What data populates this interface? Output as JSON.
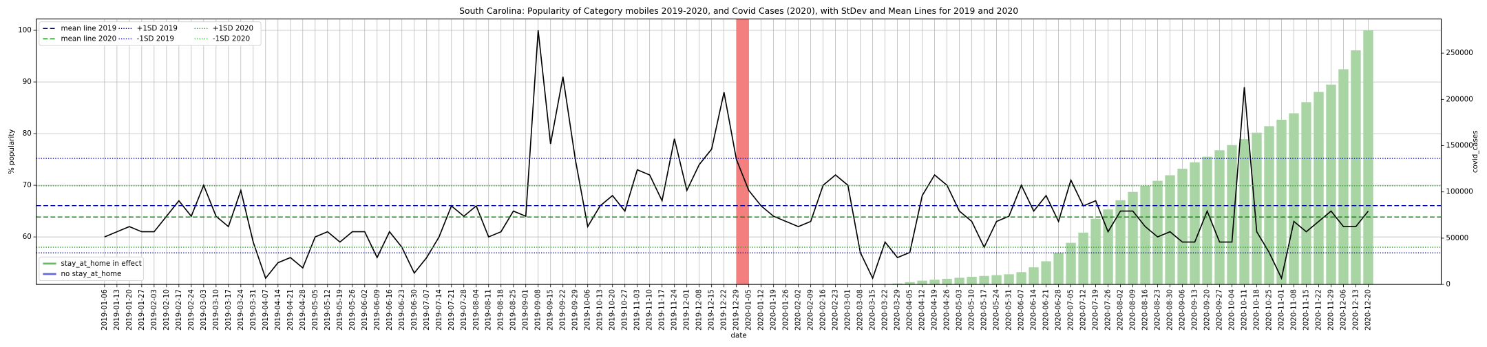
{
  "chart_data": {
    "type": "line",
    "title": "South Carolina: Popularity of Category mobiles 2019-2020, and Covid Cases (2020), with StDev and Mean Lines for 2019 and 2020",
    "x_label": "date",
    "y_label": "% popularity",
    "y2_label": "covid_cases",
    "categories": [
      "2019-01-06",
      "2019-01-13",
      "2019-01-20",
      "2019-01-27",
      "2019-02-03",
      "2019-02-10",
      "2019-02-17",
      "2019-02-24",
      "2019-03-03",
      "2019-03-10",
      "2019-03-17",
      "2019-03-24",
      "2019-03-31",
      "2019-04-07",
      "2019-04-14",
      "2019-04-21",
      "2019-04-28",
      "2019-05-05",
      "2019-05-12",
      "2019-05-19",
      "2019-05-26",
      "2019-06-02",
      "2019-06-09",
      "2019-06-16",
      "2019-06-23",
      "2019-06-30",
      "2019-07-07",
      "2019-07-14",
      "2019-07-21",
      "2019-07-28",
      "2019-08-04",
      "2019-08-11",
      "2019-08-18",
      "2019-08-25",
      "2019-09-01",
      "2019-09-08",
      "2019-09-15",
      "2019-09-22",
      "2019-09-29",
      "2019-10-06",
      "2019-10-13",
      "2019-10-20",
      "2019-10-27",
      "2019-11-03",
      "2019-11-10",
      "2019-11-17",
      "2019-11-24",
      "2019-12-01",
      "2019-12-08",
      "2019-12-15",
      "2019-12-22",
      "2019-12-29",
      "2020-01-05",
      "2020-01-12",
      "2020-01-19",
      "2020-01-26",
      "2020-02-02",
      "2020-02-09",
      "2020-02-16",
      "2020-02-23",
      "2020-03-01",
      "2020-03-08",
      "2020-03-15",
      "2020-03-22",
      "2020-03-29",
      "2020-04-05",
      "2020-04-12",
      "2020-04-19",
      "2020-04-26",
      "2020-05-03",
      "2020-05-10",
      "2020-05-17",
      "2020-05-24",
      "2020-05-31",
      "2020-06-07",
      "2020-06-14",
      "2020-06-21",
      "2020-06-28",
      "2020-07-05",
      "2020-07-12",
      "2020-07-19",
      "2020-07-26",
      "2020-08-02",
      "2020-08-09",
      "2020-08-16",
      "2020-08-23",
      "2020-08-30",
      "2020-09-06",
      "2020-09-13",
      "2020-09-20",
      "2020-09-27",
      "2020-10-04",
      "2020-10-11",
      "2020-10-18",
      "2020-10-25",
      "2020-11-01",
      "2020-11-08",
      "2020-11-15",
      "2020-11-22",
      "2020-11-29",
      "2020-12-06",
      "2020-12-13",
      "2020-12-20"
    ],
    "series": [
      {
        "type": "line",
        "color": "#000000",
        "values": [
          60,
          61,
          62,
          61,
          61,
          64,
          67,
          64,
          70,
          64,
          62,
          69,
          59,
          52,
          55,
          56,
          54,
          60,
          61,
          59,
          61,
          61,
          56,
          61,
          58,
          53,
          56,
          60,
          66,
          64,
          66,
          60,
          61,
          65,
          64,
          100,
          78,
          91,
          75,
          62,
          66,
          68,
          65,
          73,
          72,
          67,
          79,
          69,
          74,
          77,
          88,
          75,
          69,
          66,
          64,
          63,
          62,
          63,
          70,
          72,
          70,
          57,
          52,
          59,
          56,
          57,
          68,
          72,
          70,
          65,
          63,
          58,
          63,
          64,
          70,
          65,
          68,
          63,
          71,
          66,
          67,
          61,
          65,
          65,
          62,
          60,
          61,
          59,
          59,
          65,
          59,
          59,
          89,
          61,
          57,
          52,
          63,
          61,
          63,
          65,
          62,
          62,
          65
        ]
      },
      {
        "type": "bar",
        "axis": "y2",
        "color": "#a9d5a5",
        "values": [
          null,
          null,
          null,
          null,
          null,
          null,
          null,
          null,
          null,
          null,
          null,
          null,
          null,
          null,
          null,
          null,
          null,
          null,
          null,
          null,
          null,
          null,
          null,
          null,
          null,
          null,
          null,
          null,
          null,
          null,
          null,
          null,
          null,
          null,
          null,
          null,
          null,
          null,
          null,
          null,
          null,
          null,
          null,
          null,
          null,
          null,
          null,
          null,
          null,
          null,
          null,
          null,
          null,
          null,
          null,
          null,
          null,
          null,
          null,
          null,
          null,
          null,
          null,
          null,
          1000,
          2500,
          4100,
          5100,
          6100,
          7200,
          8200,
          9200,
          10000,
          11000,
          13300,
          18500,
          25000,
          34000,
          45000,
          56000,
          71000,
          81000,
          91000,
          100000,
          106500,
          112000,
          118000,
          125000,
          132000,
          138000,
          145000,
          150600,
          157000,
          164000,
          171000,
          178000,
          185000,
          197000,
          208000,
          216000,
          232600,
          253000,
          274600
        ]
      }
    ],
    "reference_lines": [
      {
        "name": "mean line 2019",
        "value": 66.05,
        "color": "#0000aa",
        "style": "dashed"
      },
      {
        "name": "mean line 2020",
        "value": 63.85,
        "color": "#008000",
        "style": "dashed"
      },
      {
        "name": "+1SD 2019",
        "value": 75.2,
        "color": "#0000cc",
        "style": "dotted"
      },
      {
        "name": "-1SD 2019",
        "value": 56.9,
        "color": "#0000cc",
        "style": "dotted"
      },
      {
        "name": "+1SD 2020",
        "value": 69.9,
        "color": "#22aa22",
        "style": "dotted"
      },
      {
        "name": "-1SD 2020",
        "value": 58.0,
        "color": "#22aa22",
        "style": "dotted"
      }
    ],
    "extra_legend": [
      {
        "name": "stay_at_home in effect",
        "color": "#66bb66"
      },
      {
        "name": "no stay_at_home",
        "color": "#6666dd"
      }
    ],
    "highlight": {
      "start": "2019-12-29",
      "end": "2020-01-05",
      "color": "#f47f7f"
    },
    "ylim": [
      50.8,
      102.2
    ],
    "yticks": [
      60,
      70,
      80,
      90,
      100
    ],
    "y2lim": [
      0,
      286900
    ],
    "y2ticks": [
      0,
      50000,
      100000,
      150000,
      200000,
      250000
    ],
    "grid": true,
    "legend": "upper left"
  }
}
